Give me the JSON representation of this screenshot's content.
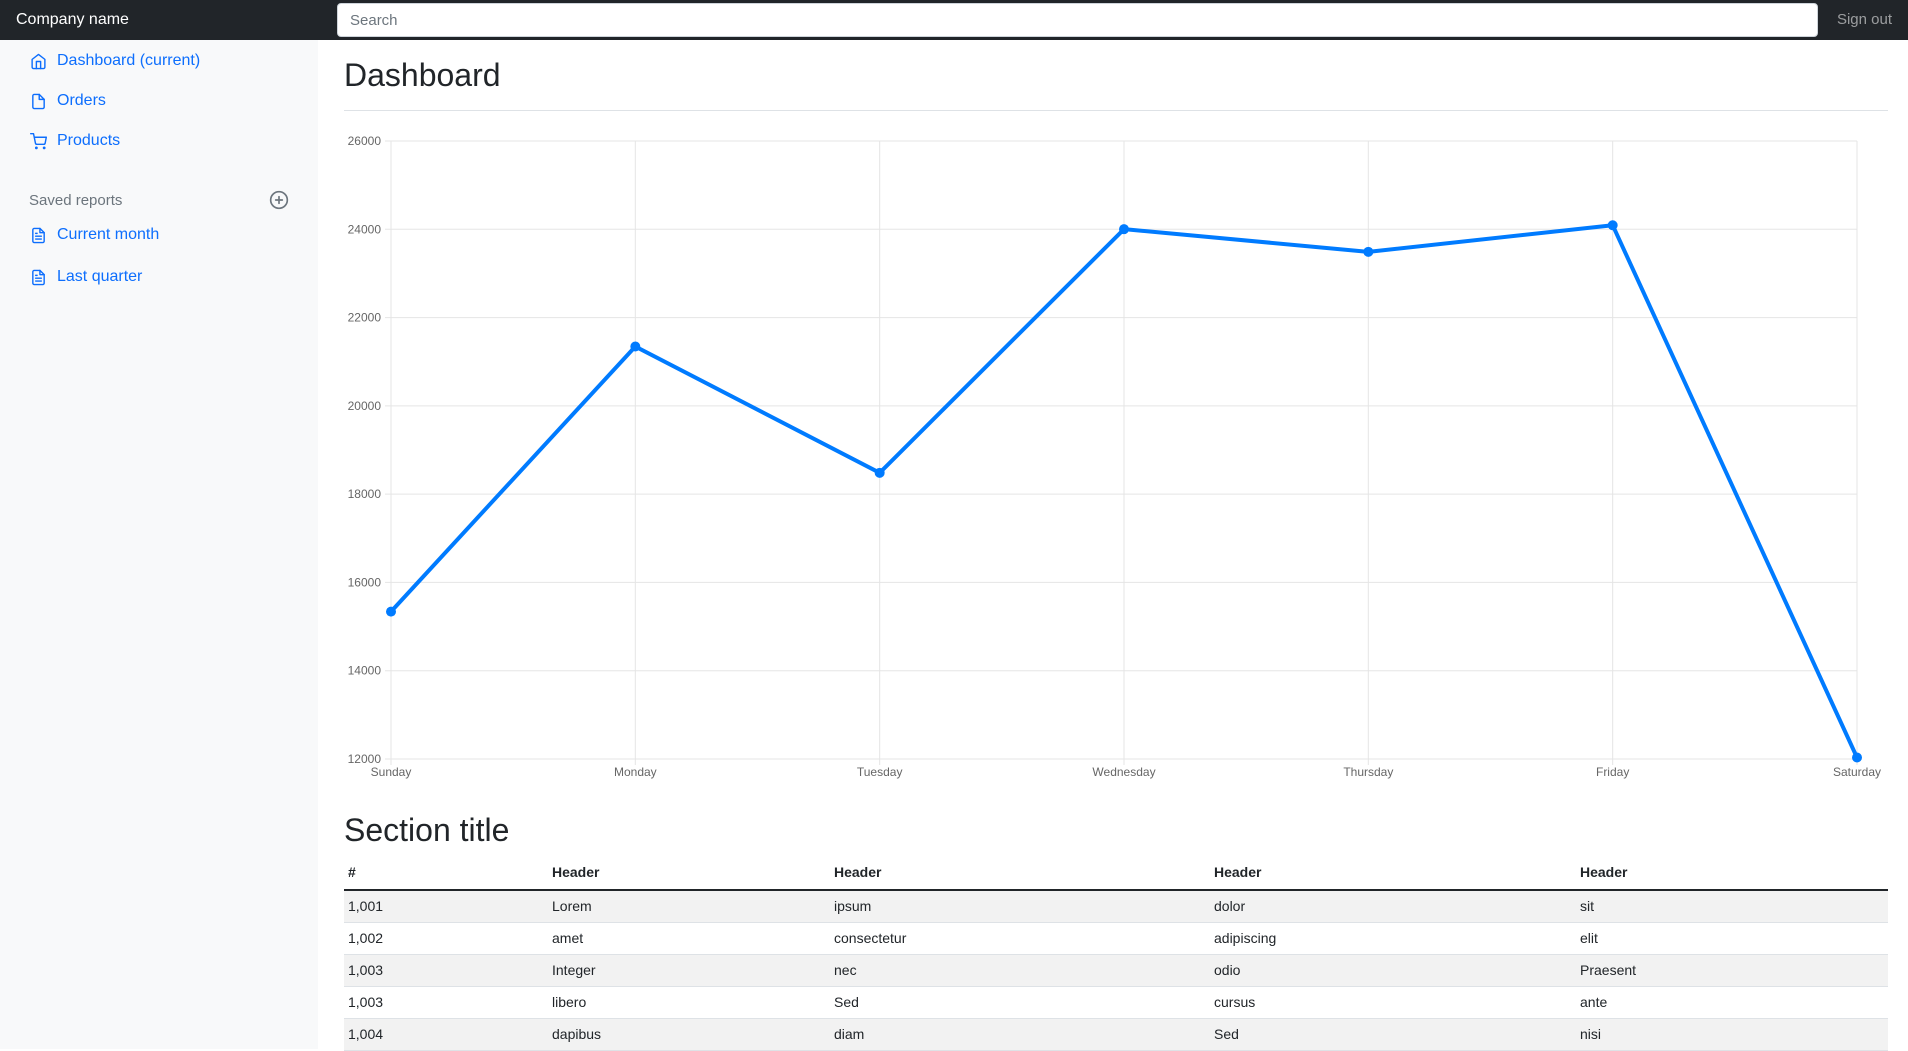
{
  "navbar": {
    "brand": "Company name",
    "search": {
      "placeholder": "Search"
    },
    "sign_out": "Sign out",
    "bg_color": "#212529"
  },
  "sidebar": {
    "link_color": "#0d6efd",
    "items": [
      {
        "id": "dashboard",
        "label": "Dashboard (current)",
        "icon": "home-icon"
      },
      {
        "id": "orders",
        "label": "Orders",
        "icon": "file-icon"
      },
      {
        "id": "products",
        "label": "Products",
        "icon": "shopping-cart-icon"
      }
    ],
    "heading": {
      "label": "Saved reports",
      "action_icon": "plus-circle-icon"
    },
    "reports": [
      {
        "id": "current-month",
        "label": "Current month",
        "icon": "file-text-icon"
      },
      {
        "id": "last-quarter",
        "label": "Last quarter",
        "icon": "file-text-icon"
      }
    ]
  },
  "main": {
    "page_title": "Dashboard",
    "section_title": "Section title"
  },
  "chart_data": {
    "type": "line",
    "title": "",
    "categories": [
      "Sunday",
      "Monday",
      "Tuesday",
      "Wednesday",
      "Thursday",
      "Friday",
      "Saturday"
    ],
    "values": [
      15339,
      21345,
      18483,
      24003,
      23489,
      24092,
      12034
    ],
    "xlabel": "",
    "ylabel": "",
    "ylim": [
      12000,
      26000
    ],
    "ytick_step": 2000,
    "grid": true,
    "legend": false,
    "fill": false,
    "line_color": "#007bff",
    "point_color": "#007bff",
    "grid_color": "#e5e5e5",
    "tick_color": "#666666"
  },
  "table": {
    "headers": [
      "#",
      "Header",
      "Header",
      "Header",
      "Header"
    ],
    "rows": [
      [
        "1,001",
        "Lorem",
        "ipsum",
        "dolor",
        "sit"
      ],
      [
        "1,002",
        "amet",
        "consectetur",
        "adipiscing",
        "elit"
      ],
      [
        "1,003",
        "Integer",
        "nec",
        "odio",
        "Praesent"
      ],
      [
        "1,003",
        "libero",
        "Sed",
        "cursus",
        "ante"
      ],
      [
        "1,004",
        "dapibus",
        "diam",
        "Sed",
        "nisi"
      ]
    ]
  }
}
